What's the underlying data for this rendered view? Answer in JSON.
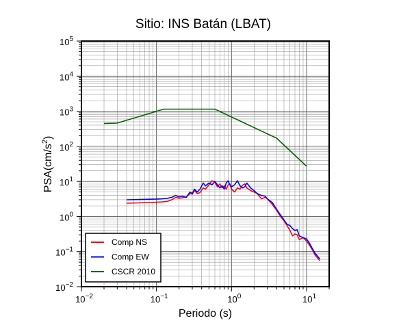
{
  "chart_data": {
    "type": "line",
    "title": "Sitio: INS Batán (LBAT)",
    "xlabel": "Periodo (s)",
    "ylabel_main": "PSA(cm/s",
    "ylabel_sup": "2",
    "ylabel_tail": ")",
    "xscale": "log",
    "yscale": "log",
    "xlim": [
      0.01,
      20
    ],
    "ylim": [
      0.01,
      100000
    ],
    "grid": true,
    "legend_position": "bottom-left",
    "x_ticks": [
      {
        "value": 0.01,
        "base": "10",
        "exp": "−2"
      },
      {
        "value": 0.1,
        "base": "10",
        "exp": "−1"
      },
      {
        "value": 1,
        "base": "10",
        "exp": "0"
      },
      {
        "value": 10,
        "base": "10",
        "exp": "1"
      }
    ],
    "y_ticks": [
      {
        "value": 0.01,
        "base": "10",
        "exp": "−2"
      },
      {
        "value": 0.1,
        "base": "10",
        "exp": "−1"
      },
      {
        "value": 1,
        "base": "10",
        "exp": "0"
      },
      {
        "value": 10,
        "base": "10",
        "exp": "1"
      },
      {
        "value": 100,
        "base": "10",
        "exp": "2"
      },
      {
        "value": 1000,
        "base": "10",
        "exp": "3"
      },
      {
        "value": 10000,
        "base": "10",
        "exp": "4"
      },
      {
        "value": 100000,
        "base": "10",
        "exp": "5"
      }
    ],
    "series": [
      {
        "name": "Comp NS",
        "color": "#ff0000",
        "points": [
          [
            0.04,
            2.4
          ],
          [
            0.06,
            2.45
          ],
          [
            0.08,
            2.5
          ],
          [
            0.1,
            2.55
          ],
          [
            0.12,
            2.6
          ],
          [
            0.14,
            2.7
          ],
          [
            0.16,
            3.0
          ],
          [
            0.18,
            3.5
          ],
          [
            0.2,
            3.3
          ],
          [
            0.22,
            3.4
          ],
          [
            0.25,
            3.6
          ],
          [
            0.28,
            4.5
          ],
          [
            0.3,
            4.3
          ],
          [
            0.32,
            5.5
          ],
          [
            0.35,
            4.5
          ],
          [
            0.38,
            4.8
          ],
          [
            0.42,
            6.5
          ],
          [
            0.45,
            6.0
          ],
          [
            0.5,
            8.0
          ],
          [
            0.55,
            10.5
          ],
          [
            0.6,
            9.5
          ],
          [
            0.65,
            7.0
          ],
          [
            0.7,
            8.5
          ],
          [
            0.75,
            6.5
          ],
          [
            0.8,
            7.5
          ],
          [
            0.85,
            6.0
          ],
          [
            0.9,
            7.8
          ],
          [
            0.95,
            8.5
          ],
          [
            1.0,
            6.0
          ],
          [
            1.1,
            5.0
          ],
          [
            1.2,
            6.5
          ],
          [
            1.3,
            6.0
          ],
          [
            1.4,
            7.8
          ],
          [
            1.5,
            8.5
          ],
          [
            1.6,
            6.5
          ],
          [
            1.8,
            5.5
          ],
          [
            2.0,
            5.0
          ],
          [
            2.2,
            4.5
          ],
          [
            2.5,
            3.2
          ],
          [
            2.8,
            3.5
          ],
          [
            3.0,
            3.2
          ],
          [
            3.5,
            2.2
          ],
          [
            4.0,
            1.5
          ],
          [
            4.5,
            1.0
          ],
          [
            5.0,
            0.75
          ],
          [
            5.5,
            0.55
          ],
          [
            6.0,
            0.4
          ],
          [
            6.5,
            0.28
          ],
          [
            7.0,
            0.32
          ],
          [
            7.5,
            0.3
          ],
          [
            8.0,
            0.22
          ],
          [
            9.0,
            0.25
          ],
          [
            10.0,
            0.2
          ],
          [
            11.0,
            0.15
          ],
          [
            12.0,
            0.11
          ],
          [
            13.0,
            0.08
          ],
          [
            15.0,
            0.055
          ]
        ]
      },
      {
        "name": "Comp EW",
        "color": "#0000ff",
        "points": [
          [
            0.04,
            3.0
          ],
          [
            0.06,
            3.05
          ],
          [
            0.08,
            3.1
          ],
          [
            0.1,
            3.15
          ],
          [
            0.12,
            3.2
          ],
          [
            0.14,
            3.3
          ],
          [
            0.16,
            3.5
          ],
          [
            0.18,
            4.0
          ],
          [
            0.2,
            3.6
          ],
          [
            0.22,
            3.8
          ],
          [
            0.25,
            3.5
          ],
          [
            0.28,
            5.0
          ],
          [
            0.3,
            4.5
          ],
          [
            0.32,
            6.0
          ],
          [
            0.35,
            5.0
          ],
          [
            0.38,
            6.0
          ],
          [
            0.42,
            9.0
          ],
          [
            0.45,
            7.5
          ],
          [
            0.5,
            9.0
          ],
          [
            0.55,
            8.0
          ],
          [
            0.6,
            10.0
          ],
          [
            0.65,
            8.0
          ],
          [
            0.7,
            6.5
          ],
          [
            0.75,
            7.5
          ],
          [
            0.8,
            6.0
          ],
          [
            0.85,
            9.0
          ],
          [
            0.9,
            10.5
          ],
          [
            0.95,
            8.0
          ],
          [
            1.0,
            7.0
          ],
          [
            1.1,
            8.0
          ],
          [
            1.2,
            10.5
          ],
          [
            1.3,
            7.5
          ],
          [
            1.4,
            6.5
          ],
          [
            1.5,
            7.0
          ],
          [
            1.6,
            9.0
          ],
          [
            1.8,
            6.5
          ],
          [
            2.0,
            5.5
          ],
          [
            2.2,
            4.5
          ],
          [
            2.5,
            4.0
          ],
          [
            2.8,
            3.8
          ],
          [
            3.0,
            3.2
          ],
          [
            3.5,
            2.5
          ],
          [
            4.0,
            1.6
          ],
          [
            4.5,
            1.1
          ],
          [
            5.0,
            0.8
          ],
          [
            5.5,
            0.6
          ],
          [
            6.0,
            0.55
          ],
          [
            6.5,
            0.45
          ],
          [
            7.0,
            0.4
          ],
          [
            7.5,
            0.42
          ],
          [
            8.0,
            0.28
          ],
          [
            9.0,
            0.25
          ],
          [
            10.0,
            0.23
          ],
          [
            11.0,
            0.17
          ],
          [
            12.0,
            0.12
          ],
          [
            13.0,
            0.09
          ],
          [
            15.0,
            0.062
          ]
        ]
      },
      {
        "name": "CSCR 2010",
        "color": "#006400",
        "points": [
          [
            0.02,
            450
          ],
          [
            0.03,
            460
          ],
          [
            0.125,
            1150
          ],
          [
            0.6,
            1150
          ],
          [
            4.0,
            170
          ],
          [
            10.0,
            27
          ]
        ]
      }
    ]
  }
}
